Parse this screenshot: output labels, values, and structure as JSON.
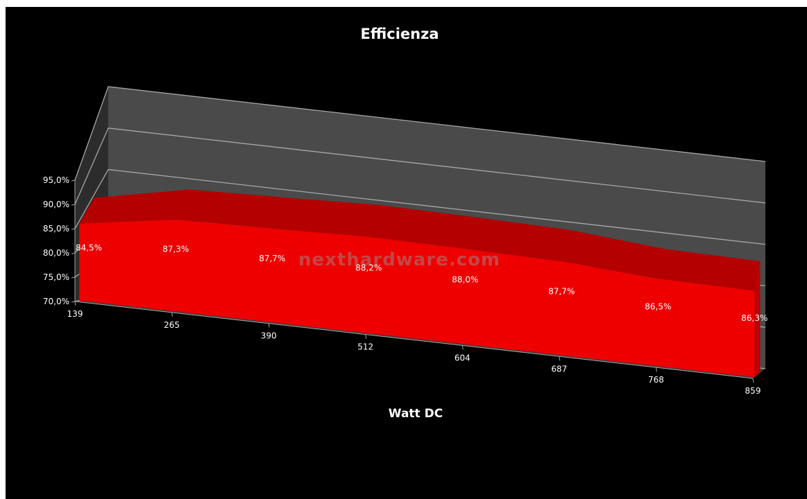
{
  "chart_data": {
    "type": "area",
    "title": "Efficienza",
    "xlabel": "Watt DC",
    "ylabel": "",
    "categories": [
      "139",
      "265",
      "390",
      "512",
      "604",
      "687",
      "768",
      "859"
    ],
    "values": [
      84.5,
      87.3,
      87.7,
      88.2,
      88.0,
      87.7,
      86.5,
      86.3
    ],
    "data_labels": [
      "84,5%",
      "87,3%",
      "87,7%",
      "88,2%",
      "88,0%",
      "87,7%",
      "86,5%",
      "86,3%"
    ],
    "y_ticks": [
      "70,0%",
      "75,0%",
      "80,0%",
      "85,0%",
      "90,0%",
      "95,0%"
    ],
    "ylim": [
      70,
      95
    ],
    "grid": true,
    "legend": "none",
    "style": "3d",
    "colors": {
      "series": "#ee0000",
      "series_top": "#b50000",
      "series_side": "#c00000",
      "back_wall": "#4a4a4a",
      "floor": "#3a3a3a",
      "gridline": "#a8a8a8",
      "background": "#000000"
    }
  },
  "watermark": "nexthardware.com"
}
